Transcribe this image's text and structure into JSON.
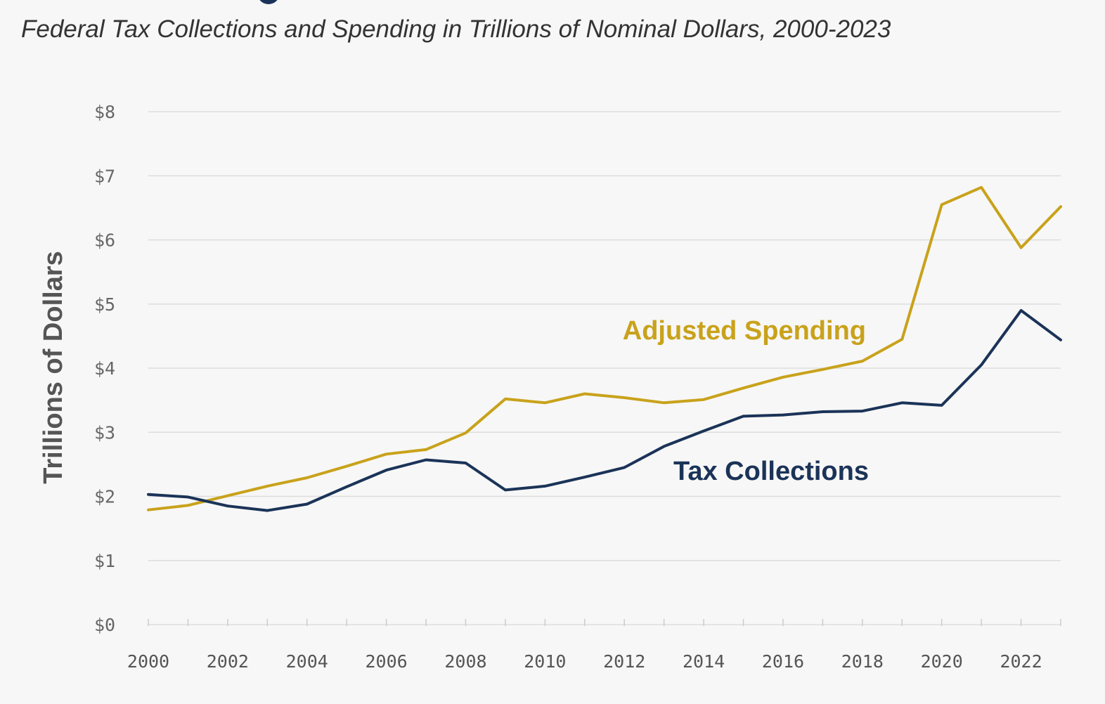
{
  "subtitle": "Federal Tax Collections and Spending in Trillions of Nominal Dollars, 2000-2023",
  "colors": {
    "spending": "#c9a21b",
    "tax": "#1b3358",
    "grid": "#dddddd",
    "background": "#f7f7f7"
  },
  "chart_data": {
    "type": "line",
    "title": "",
    "xlabel": "",
    "ylabel": "Trillions of Dollars",
    "x": [
      2000,
      2001,
      2002,
      2003,
      2004,
      2005,
      2006,
      2007,
      2008,
      2009,
      2010,
      2011,
      2012,
      2013,
      2014,
      2015,
      2016,
      2017,
      2018,
      2019,
      2020,
      2021,
      2022,
      2023
    ],
    "xlim": [
      2000,
      2023
    ],
    "ylim": [
      0,
      8
    ],
    "x_ticks": [
      "2000",
      "2002",
      "2004",
      "2006",
      "2008",
      "2010",
      "2012",
      "2014",
      "2016",
      "2018",
      "2020",
      "2022"
    ],
    "y_ticks": [
      "$0",
      "$1",
      "$2",
      "$3",
      "$4",
      "$5",
      "$6",
      "$7",
      "$8"
    ],
    "grid": true,
    "legend": "inline labels",
    "series": [
      {
        "name": "Adjusted Spending",
        "values": [
          1.79,
          1.86,
          2.01,
          2.16,
          2.29,
          2.47,
          2.66,
          2.73,
          2.99,
          3.52,
          3.46,
          3.6,
          3.54,
          3.46,
          3.51,
          3.69,
          3.86,
          3.98,
          4.11,
          4.45,
          6.55,
          6.82,
          5.88,
          6.52
        ],
        "color": "#c9a21b"
      },
      {
        "name": "Tax Collections",
        "values": [
          2.03,
          1.99,
          1.85,
          1.78,
          1.88,
          2.15,
          2.41,
          2.57,
          2.52,
          2.1,
          2.16,
          2.3,
          2.45,
          2.78,
          3.02,
          3.25,
          3.27,
          3.32,
          3.33,
          3.46,
          3.42,
          4.05,
          4.9,
          4.44
        ],
        "color": "#1b3358"
      }
    ]
  }
}
